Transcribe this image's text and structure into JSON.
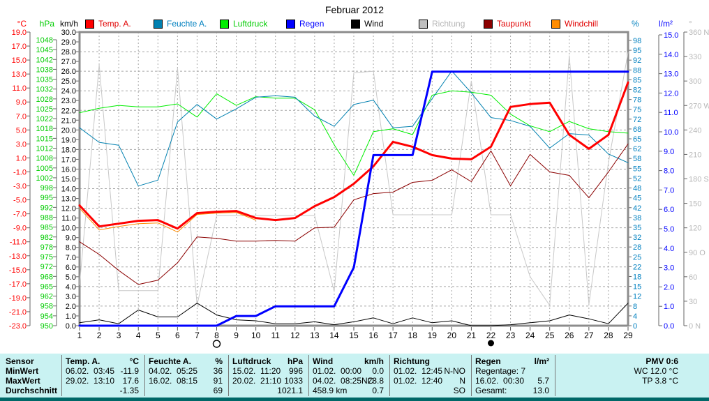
{
  "title": "Februar 2012",
  "colors": {
    "table_bg": "#c9f2f2",
    "footer_strip": "#006868",
    "plot_border": "#8c8c8c",
    "grid": "#a6a6a6"
  },
  "legend": [
    {
      "label": "Temp. A.",
      "swatch": "#ff0000",
      "text_color": "#e00000"
    },
    {
      "label": "Feuchte A.",
      "swatch": "#0080b0",
      "text_color": "#0080c0"
    },
    {
      "label": "Luftdruck",
      "swatch": "#00ee00",
      "text_color": "#00cc00"
    },
    {
      "label": "Regen",
      "swatch": "#0000ff",
      "text_color": "#0000ff"
    },
    {
      "label": "Wind",
      "swatch": "#000000",
      "text_color": "#000000"
    },
    {
      "label": "Richtung",
      "swatch": "#c0c0c0",
      "text_color": "#b8b8b8"
    },
    {
      "label": "Taupunkt",
      "swatch": "#8b0000",
      "text_color": "#e00000"
    },
    {
      "label": "Windchill",
      "swatch": "#ff8c00",
      "text_color": "#e00000"
    }
  ],
  "axes": {
    "left": [
      {
        "unit": "°C",
        "color": "#ff0000",
        "labels": [
          "19.0",
          "17.0",
          "15.0",
          "13.0",
          "11.0",
          "9.0",
          "7.0",
          "5.0",
          "3.0",
          "1.0",
          "-1.0",
          "-3.0",
          "-5.0",
          "-7.0",
          "-9.0",
          "-11.0",
          "-13.0",
          "-15.0",
          "-17.0",
          "-19.0",
          "-21.0",
          "-23.0"
        ]
      },
      {
        "unit": "hPa",
        "color": "#00cc00",
        "labels": [
          "1048",
          "1045",
          "1042",
          "1038",
          "1035",
          "1032",
          "1028",
          "1025",
          "1022",
          "1018",
          "1015",
          "1012",
          "1008",
          "1005",
          "1002",
          "998",
          "995",
          "992",
          "988",
          "985",
          "982",
          "978",
          "975",
          "972",
          "968",
          "965",
          "962",
          "958",
          "954",
          "950"
        ]
      },
      {
        "unit": "km/h",
        "color": "#000000",
        "labels": [
          "30.0",
          "29.0",
          "28.0",
          "27.0",
          "26.0",
          "25.0",
          "24.0",
          "23.0",
          "22.0",
          "21.0",
          "20.0",
          "19.0",
          "18.0",
          "17.0",
          "16.0",
          "15.0",
          "14.0",
          "13.0",
          "12.0",
          "11.0",
          "10.0",
          "9.0",
          "8.0",
          "7.0",
          "6.0",
          "5.0",
          "4.0",
          "3.0",
          "2.0",
          "1.0",
          "0.0"
        ]
      }
    ],
    "right": [
      {
        "unit": "%",
        "color": "#0080c0",
        "labels": [
          "98",
          "95",
          "92",
          "88",
          "85",
          "82",
          "78",
          "75",
          "72",
          "68",
          "65",
          "62",
          "58",
          "55",
          "52",
          "48",
          "45",
          "42",
          "38",
          "35",
          "32",
          "28",
          "25",
          "22",
          "18",
          "15",
          "12",
          "8",
          "4",
          "0"
        ]
      },
      {
        "unit": "l/m²",
        "color": "#0000ff",
        "labels": [
          "15.0",
          "14.0",
          "13.0",
          "12.0",
          "11.0",
          "10.0",
          "9.0",
          "8.0",
          "7.0",
          "6.0",
          "5.0",
          "4.0",
          "3.0",
          "2.0",
          "1.0",
          "0.0"
        ]
      },
      {
        "unit": "°",
        "color": "#b8b8b8",
        "labels": [
          "360 N",
          "330",
          "300",
          "270 W",
          "240",
          "210",
          "180 S",
          "150",
          "120",
          "90 O",
          "60",
          "30",
          "0 N"
        ]
      }
    ],
    "x": {
      "labels": [
        "1",
        "2",
        "3",
        "4",
        "5",
        "6",
        "7",
        "8",
        "9",
        "10",
        "11",
        "12",
        "13",
        "14",
        "15",
        "16",
        "17",
        "18",
        "19",
        "20",
        "21",
        "22",
        "23",
        "24",
        "25",
        "26",
        "27",
        "28",
        "29"
      ],
      "moon_open_day": 8,
      "moon_filled_day": 22
    }
  },
  "chart_data": {
    "type": "line",
    "title": "Februar 2012",
    "x": [
      1,
      2,
      3,
      4,
      5,
      6,
      7,
      8,
      9,
      10,
      11,
      12,
      13,
      14,
      15,
      16,
      17,
      18,
      19,
      20,
      21,
      22,
      23,
      24,
      25,
      26,
      27,
      28,
      29
    ],
    "axis_ranges": {
      "degC": [
        -23,
        19
      ],
      "hpa": [
        950,
        1048
      ],
      "pct": [
        0,
        98
      ],
      "kmh": [
        0,
        30
      ],
      "lm2": [
        0,
        15
      ],
      "deg": [
        0,
        360
      ]
    },
    "legend_position": "top",
    "grid": true,
    "series": [
      {
        "name": "Richtung",
        "axis": "deg",
        "color": "#c8c8c8",
        "width": 1,
        "values": [
          50,
          320,
          43,
          43,
          43,
          316,
          25,
          135,
          135,
          135,
          135,
          135,
          135,
          42,
          310,
          312,
          136,
          136,
          136,
          136,
          300,
          136,
          136,
          60,
          25,
          331,
          26,
          200,
          335
        ]
      },
      {
        "name": "Luftdruck",
        "axis": "hpa",
        "color": "#00ee00",
        "width": 1,
        "values": [
          1023,
          1024.5,
          1025.5,
          1025,
          1025,
          1026,
          1021.5,
          1029.5,
          1025.5,
          1028.5,
          1028,
          1028,
          1024,
          1012,
          1001.5,
          1016.5,
          1017.5,
          1015.5,
          1029,
          1030.5,
          1030,
          1029,
          1022.5,
          1018.5,
          1016.5,
          1020,
          1017.5,
          1016.5,
          1016
        ]
      },
      {
        "name": "Feuchte A.",
        "axis": "pct",
        "color": "#0080b0",
        "width": 1,
        "values": [
          68,
          63,
          62,
          48,
          50,
          70,
          76,
          71,
          74.5,
          78.5,
          79,
          78.5,
          72,
          68.5,
          76,
          77.5,
          68,
          68.5,
          78,
          87.5,
          80,
          71.5,
          70.5,
          68.5,
          61,
          66,
          65.5,
          59,
          56
        ]
      },
      {
        "name": "Taupunkt",
        "axis": "degC",
        "color": "#8b0000",
        "width": 1,
        "values": [
          -11.0,
          -12.8,
          -15.1,
          -17.1,
          -16.5,
          -14.0,
          -10.3,
          -10.5,
          -10.9,
          -10.9,
          -10.8,
          -10.9,
          -9.0,
          -8.9,
          -5.0,
          -4.1,
          -3.9,
          -2.5,
          -2.2,
          -0.7,
          -2.4,
          2.0,
          -3.0,
          1.5,
          -1.0,
          -1.5,
          -4.7,
          -1.0,
          3.0
        ]
      },
      {
        "name": "Wind",
        "axis": "kmh",
        "color": "#000000",
        "width": 1,
        "values": [
          0.3,
          0.6,
          0.2,
          1.6,
          0.9,
          0.9,
          2.3,
          1.1,
          0.6,
          0.5,
          0.2,
          0.2,
          0.4,
          0.1,
          0.4,
          0.8,
          0.2,
          0.8,
          0.3,
          0.5,
          0.0,
          0.0,
          0.1,
          0.3,
          0.5,
          1.1,
          0.7,
          0.2,
          2.3
        ]
      },
      {
        "name": "Windchill",
        "axis": "degC",
        "color": "#ff8c00",
        "width": 1,
        "values": [
          -6.2,
          -9.3,
          -8.8,
          -8.4,
          -8.3,
          -9.6,
          -7.1,
          -6.9,
          -6.8,
          -7.9,
          null,
          null,
          null,
          null,
          null,
          null,
          null,
          null,
          null,
          null,
          null,
          null,
          null,
          null,
          null,
          null,
          null,
          null,
          null
        ]
      },
      {
        "name": "Temp. A.",
        "axis": "degC",
        "color": "#ff0000",
        "width": 3,
        "values": [
          -5.8,
          -8.8,
          -8.4,
          -8.0,
          -7.9,
          -9.1,
          -6.9,
          -6.7,
          -6.6,
          -7.6,
          -7.9,
          -7.6,
          -5.9,
          -4.6,
          -2.7,
          -0.2,
          3.3,
          2.6,
          1.4,
          0.9,
          0.8,
          2.6,
          8.3,
          8.7,
          8.9,
          4.3,
          2.3,
          4.3,
          11.8
        ]
      },
      {
        "name": "Regen",
        "axis": "lm2",
        "color": "#0000ff",
        "width": 3,
        "values": [
          0,
          0,
          0,
          0,
          0,
          0,
          0,
          0,
          0.5,
          0.5,
          1.0,
          1.0,
          1.0,
          1.0,
          3.0,
          8.8,
          8.8,
          8.8,
          13.1,
          13.1,
          13.1,
          13.1,
          13.1,
          13.1,
          13.1,
          13.1,
          13.1,
          13.1,
          13.1
        ]
      }
    ]
  },
  "table": {
    "row_labels": [
      "Sensor",
      "MinWert",
      "MaxWert",
      "Durchschnitt"
    ],
    "columns": [
      {
        "name": "Temp. A.",
        "unit": "°C",
        "min": {
          "when": "06.02.  03:45",
          "value": "-11.9"
        },
        "max": {
          "when": "29.02.  13:10",
          "value": "17.6"
        },
        "avg": {
          "when": "",
          "value": "-1.35"
        }
      },
      {
        "name": "Feuchte A.",
        "unit": "%",
        "min": {
          "when": "04.02.  05:25",
          "value": "36"
        },
        "max": {
          "when": "16.02.  08:15",
          "value": "91"
        },
        "avg": {
          "when": "",
          "value": "69"
        }
      },
      {
        "name": "Luftdruck",
        "unit": "hPa",
        "min": {
          "when": "15.02.  11:20",
          "value": "996"
        },
        "max": {
          "when": "20.02.  21:10",
          "value": "1033"
        },
        "avg": {
          "when": "",
          "value": "1021.1"
        }
      },
      {
        "name": "Wind",
        "unit": "km/h",
        "min": {
          "when": "01.02.  00:00",
          "value": "0.0"
        },
        "max": {
          "when": "04.02.  08:25NO",
          "value": "23.8"
        },
        "avg": {
          "when": "458.9 km",
          "value": "0.7"
        }
      },
      {
        "name": "Richtung",
        "unit": "",
        "min": {
          "when": "01.02.  12:45",
          "value": "N-NO"
        },
        "max": {
          "when": "01.02.  12:40",
          "value": "N"
        },
        "avg": {
          "when": "",
          "value": "SO"
        }
      },
      {
        "name": "Regen",
        "unit": "l/m²",
        "min": {
          "when": "Regentage: 7",
          "value": ""
        },
        "max": {
          "when": "16.02.  00:30",
          "value": "5.7"
        },
        "avg": {
          "when": "Gesamt:",
          "value": "13.0"
        }
      },
      {
        "name": "",
        "unit": "PMV 0:6",
        "min": {
          "when": "",
          "value": "WC 12.0 °C"
        },
        "max": {
          "when": "",
          "value": "TP 3.8 °C"
        },
        "avg": {
          "when": "",
          "value": ""
        }
      }
    ]
  }
}
